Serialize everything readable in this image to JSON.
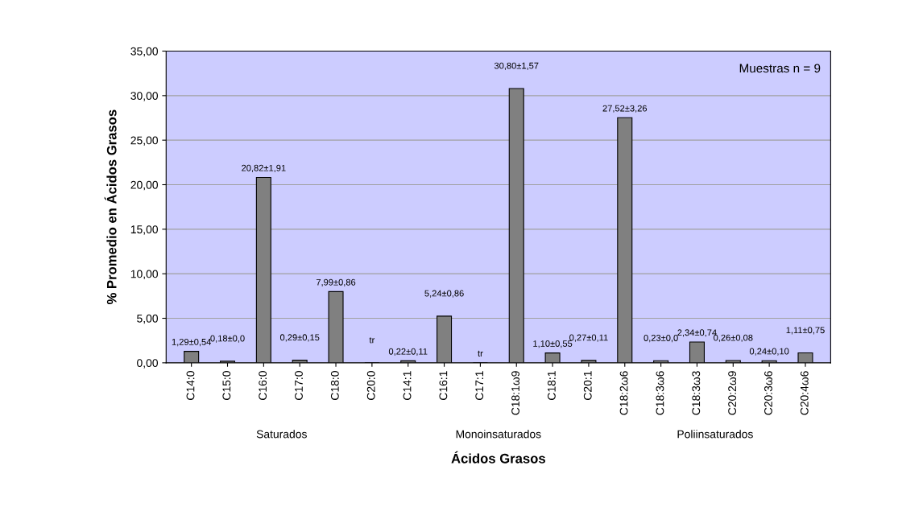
{
  "chart_data": {
    "type": "bar",
    "xlabel": "Ácidos Grasos",
    "ylabel": "% Promedio en Ácidos Grasos",
    "categories": [
      "C14:0",
      "C15:0",
      "C16:0",
      "C17:0",
      "C18:0",
      "C20:0",
      "C14:1",
      "C16:1",
      "C17:1",
      "C18:1ω9",
      "C18:1",
      "C20:1",
      "C18:2ω6",
      "C18:3ω6",
      "C18:3ω3",
      "C20:2ω9",
      "C20:3ω6",
      "C20:4ω6"
    ],
    "values": [
      1.29,
      0.18,
      20.82,
      0.29,
      7.99,
      0,
      0.22,
      5.24,
      0,
      30.8,
      1.1,
      0.27,
      27.52,
      0.23,
      2.34,
      0.26,
      0.24,
      1.11
    ],
    "value_labels": [
      "1,29±0,54",
      "0,18±0,0",
      "20,82±1,91",
      "0,29±0,15",
      "7,99±0,86",
      "tr",
      "0,22±0,11",
      "5,24±0,86",
      "tr",
      "30,80±1,57",
      "1,10±0,55",
      "0,27±0,11",
      "27,52±3,26",
      "0,23±0,0",
      "2,34±0,74",
      "0,26±0,08",
      "0,24±0,10",
      "1,11±0,75"
    ],
    "color": "#808080",
    "ylim": [
      0,
      35
    ],
    "yticks": [
      {
        "value": 0,
        "label": "0,00"
      },
      {
        "value": 5,
        "label": "5,00"
      },
      {
        "value": 10,
        "label": "10,00"
      },
      {
        "value": 15,
        "label": "15,00"
      },
      {
        "value": 20,
        "label": "20,00"
      },
      {
        "value": 25,
        "label": "25,00"
      },
      {
        "value": 30,
        "label": "30,00"
      },
      {
        "value": 35,
        "label": "35,00"
      }
    ],
    "grid": "y",
    "annotations": [
      "Muestras n = 9",
      "Saturados",
      "Monoinsaturados",
      "Poliinsaturados"
    ]
  }
}
